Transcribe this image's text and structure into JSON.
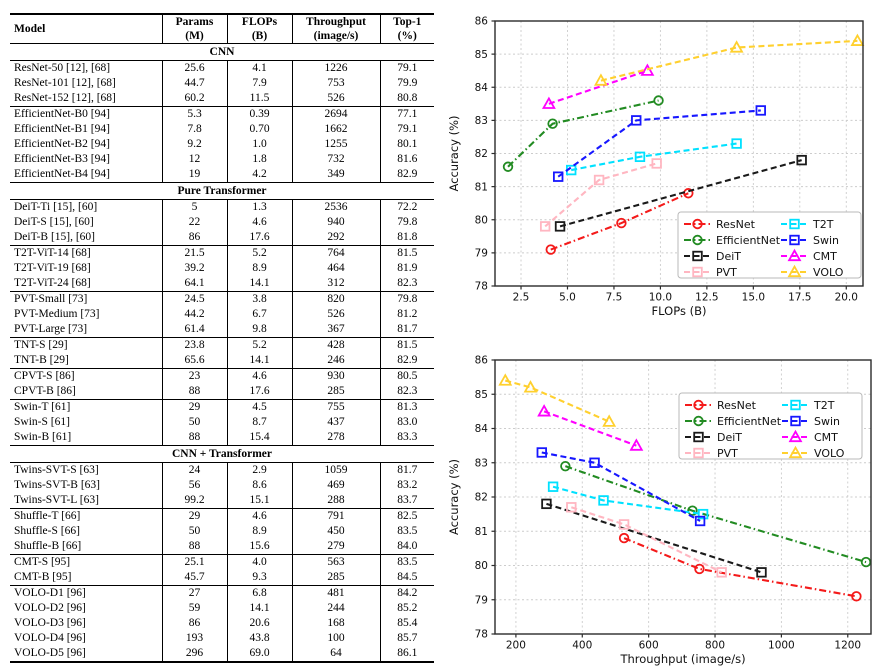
{
  "table": {
    "headers": [
      {
        "title": "Model",
        "unit": ""
      },
      {
        "title": "Params",
        "unit": "(M)"
      },
      {
        "title": "FLOPs",
        "unit": "(B)"
      },
      {
        "title": "Throughput",
        "unit": "(image/s)"
      },
      {
        "title": "Top-1",
        "unit": "(%)"
      }
    ],
    "sections": [
      {
        "name": "CNN",
        "groups": [
          [
            [
              "ResNet-50 [12], [68]",
              "25.6",
              "4.1",
              "1226",
              "79.1"
            ],
            [
              "ResNet-101 [12], [68]",
              "44.7",
              "7.9",
              "753",
              "79.9"
            ],
            [
              "ResNet-152 [12], [68]",
              "60.2",
              "11.5",
              "526",
              "80.8"
            ]
          ],
          [
            [
              "EfficientNet-B0 [94]",
              "5.3",
              "0.39",
              "2694",
              "77.1"
            ],
            [
              "EfficientNet-B1 [94]",
              "7.8",
              "0.70",
              "1662",
              "79.1"
            ],
            [
              "EfficientNet-B2 [94]",
              "9.2",
              "1.0",
              "1255",
              "80.1"
            ],
            [
              "EfficientNet-B3 [94]",
              "12",
              "1.8",
              "732",
              "81.6"
            ],
            [
              "EfficientNet-B4 [94]",
              "19",
              "4.2",
              "349",
              "82.9"
            ]
          ]
        ]
      },
      {
        "name": "Pure Transformer",
        "groups": [
          [
            [
              "DeiT-Ti [15], [60]",
              "5",
              "1.3",
              "2536",
              "72.2"
            ],
            [
              "DeiT-S [15], [60]",
              "22",
              "4.6",
              "940",
              "79.8"
            ],
            [
              "DeiT-B [15], [60]",
              "86",
              "17.6",
              "292",
              "81.8"
            ]
          ],
          [
            [
              "T2T-ViT-14 [68]",
              "21.5",
              "5.2",
              "764",
              "81.5"
            ],
            [
              "T2T-ViT-19 [68]",
              "39.2",
              "8.9",
              "464",
              "81.9"
            ],
            [
              "T2T-ViT-24 [68]",
              "64.1",
              "14.1",
              "312",
              "82.3"
            ]
          ],
          [
            [
              "PVT-Small [73]",
              "24.5",
              "3.8",
              "820",
              "79.8"
            ],
            [
              "PVT-Medium [73]",
              "44.2",
              "6.7",
              "526",
              "81.2"
            ],
            [
              "PVT-Large [73]",
              "61.4",
              "9.8",
              "367",
              "81.7"
            ]
          ],
          [
            [
              "TNT-S [29]",
              "23.8",
              "5.2",
              "428",
              "81.5"
            ],
            [
              "TNT-B [29]",
              "65.6",
              "14.1",
              "246",
              "82.9"
            ]
          ],
          [
            [
              "CPVT-S [86]",
              "23",
              "4.6",
              "930",
              "80.5"
            ],
            [
              "CPVT-B [86]",
              "88",
              "17.6",
              "285",
              "82.3"
            ]
          ],
          [
            [
              "Swin-T [61]",
              "29",
              "4.5",
              "755",
              "81.3"
            ],
            [
              "Swin-S [61]",
              "50",
              "8.7",
              "437",
              "83.0"
            ],
            [
              "Swin-B [61]",
              "88",
              "15.4",
              "278",
              "83.3"
            ]
          ]
        ]
      },
      {
        "name": "CNN + Transformer",
        "groups": [
          [
            [
              "Twins-SVT-S [63]",
              "24",
              "2.9",
              "1059",
              "81.7"
            ],
            [
              "Twins-SVT-B [63]",
              "56",
              "8.6",
              "469",
              "83.2"
            ],
            [
              "Twins-SVT-L [63]",
              "99.2",
              "15.1",
              "288",
              "83.7"
            ]
          ],
          [
            [
              "Shuffle-T [66]",
              "29",
              "4.6",
              "791",
              "82.5"
            ],
            [
              "Shuffle-S [66]",
              "50",
              "8.9",
              "450",
              "83.5"
            ],
            [
              "Shuffle-B [66]",
              "88",
              "15.6",
              "279",
              "84.0"
            ]
          ],
          [
            [
              "CMT-S [95]",
              "25.1",
              "4.0",
              "563",
              "83.5"
            ],
            [
              "CMT-B [95]",
              "45.7",
              "9.3",
              "285",
              "84.5"
            ]
          ],
          [
            [
              "VOLO-D1 [96]",
              "27",
              "6.8",
              "481",
              "84.2"
            ],
            [
              "VOLO-D2 [96]",
              "59",
              "14.1",
              "244",
              "85.2"
            ],
            [
              "VOLO-D3 [96]",
              "86",
              "20.6",
              "168",
              "85.4"
            ],
            [
              "VOLO-D4 [96]",
              "193",
              "43.8",
              "100",
              "85.7"
            ],
            [
              "VOLO-D5 [96]",
              "296",
              "69.0",
              "64",
              "86.1"
            ]
          ]
        ]
      }
    ]
  },
  "chart_data": [
    {
      "type": "line",
      "title": "",
      "xlabel": "FLOPs (B)",
      "ylabel": "Accuracy (%)",
      "xlim": [
        1.1,
        20.9
      ],
      "ylim": [
        78,
        86
      ],
      "xticks": [
        "2.5",
        "5.0",
        "7.5",
        "10.0",
        "12.5",
        "15.0",
        "17.5",
        "20.0"
      ],
      "xtick_vals": [
        2.5,
        5.0,
        7.5,
        10.0,
        12.5,
        15.0,
        17.5,
        20.0
      ],
      "yticks": [
        "78",
        "79",
        "80",
        "81",
        "82",
        "83",
        "84",
        "85",
        "86"
      ],
      "ytick_vals": [
        78,
        79,
        80,
        81,
        82,
        83,
        84,
        85,
        86
      ],
      "grid": true,
      "legend_position": "lower right",
      "series": [
        {
          "name": "ResNet",
          "color": "#f41a1a",
          "marker": "circle",
          "linestyle": "dashdot",
          "points": [
            [
              4.1,
              79.1
            ],
            [
              7.9,
              79.9
            ],
            [
              11.5,
              80.8
            ]
          ]
        },
        {
          "name": "EfficientNet",
          "color": "#228b22",
          "marker": "circle",
          "linestyle": "dashdot",
          "points": [
            [
              1.8,
              81.6
            ],
            [
              4.2,
              82.9
            ],
            [
              9.9,
              83.6
            ]
          ]
        },
        {
          "name": "DeiT",
          "color": "#1a1a1a",
          "marker": "square",
          "linestyle": "dashed",
          "points": [
            [
              4.6,
              79.8
            ],
            [
              17.6,
              81.8
            ]
          ]
        },
        {
          "name": "PVT",
          "color": "#ffb6c1",
          "marker": "square",
          "linestyle": "dashed",
          "points": [
            [
              3.8,
              79.8
            ],
            [
              6.7,
              81.2
            ],
            [
              9.8,
              81.7
            ]
          ]
        },
        {
          "name": "T2T",
          "color": "#00e1ff",
          "marker": "square",
          "linestyle": "dashed",
          "points": [
            [
              5.2,
              81.5
            ],
            [
              8.9,
              81.9
            ],
            [
              14.1,
              82.3
            ]
          ]
        },
        {
          "name": "Swin",
          "color": "#1717ff",
          "marker": "square",
          "linestyle": "dashed",
          "points": [
            [
              4.5,
              81.3
            ],
            [
              8.7,
              83.0
            ],
            [
              15.4,
              83.3
            ]
          ]
        },
        {
          "name": "CMT",
          "color": "#ff00ff",
          "marker": "triangle",
          "linestyle": "dashed",
          "points": [
            [
              4.0,
              83.5
            ],
            [
              9.3,
              84.5
            ]
          ]
        },
        {
          "name": "VOLO",
          "color": "#ffd02e",
          "marker": "triangle",
          "linestyle": "dashed",
          "points": [
            [
              6.8,
              84.2
            ],
            [
              14.1,
              85.2
            ],
            [
              20.6,
              85.4
            ]
          ]
        }
      ]
    },
    {
      "type": "line",
      "title": "",
      "xlabel": "Throughput (image/s)",
      "ylabel": "Accuracy (%)",
      "xlim": [
        137,
        1270
      ],
      "ylim": [
        78,
        86
      ],
      "xticks": [
        "200",
        "400",
        "600",
        "800",
        "1000",
        "1200"
      ],
      "xtick_vals": [
        200,
        400,
        600,
        800,
        1000,
        1200
      ],
      "yticks": [
        "78",
        "79",
        "80",
        "81",
        "82",
        "83",
        "84",
        "85",
        "86"
      ],
      "ytick_vals": [
        78,
        79,
        80,
        81,
        82,
        83,
        84,
        85,
        86
      ],
      "grid": true,
      "legend_position": "upper right",
      "series": [
        {
          "name": "ResNet",
          "color": "#f41a1a",
          "marker": "circle",
          "linestyle": "dashdot",
          "points": [
            [
              526,
              80.8
            ],
            [
              753,
              79.9
            ],
            [
              1226,
              79.1
            ]
          ]
        },
        {
          "name": "EfficientNet",
          "color": "#228b22",
          "marker": "circle",
          "linestyle": "dashdot",
          "points": [
            [
              349,
              82.9
            ],
            [
              732,
              81.6
            ],
            [
              1255,
              80.1
            ]
          ]
        },
        {
          "name": "DeiT",
          "color": "#1a1a1a",
          "marker": "square",
          "linestyle": "dashed",
          "points": [
            [
              292,
              81.8
            ],
            [
              940,
              79.8
            ]
          ]
        },
        {
          "name": "PVT",
          "color": "#ffb6c1",
          "marker": "square",
          "linestyle": "dashed",
          "points": [
            [
              367,
              81.7
            ],
            [
              526,
              81.2
            ],
            [
              820,
              79.8
            ]
          ]
        },
        {
          "name": "T2T",
          "color": "#00e1ff",
          "marker": "square",
          "linestyle": "dashed",
          "points": [
            [
              312,
              82.3
            ],
            [
              464,
              81.9
            ],
            [
              764,
              81.5
            ]
          ]
        },
        {
          "name": "Swin",
          "color": "#1717ff",
          "marker": "square",
          "linestyle": "dashed",
          "points": [
            [
              278,
              83.3
            ],
            [
              437,
              83.0
            ],
            [
              755,
              81.3
            ]
          ]
        },
        {
          "name": "CMT",
          "color": "#ff00ff",
          "marker": "triangle",
          "linestyle": "dashed",
          "points": [
            [
              285,
              84.5
            ],
            [
              563,
              83.5
            ]
          ]
        },
        {
          "name": "VOLO",
          "color": "#ffd02e",
          "marker": "triangle",
          "linestyle": "dashed",
          "points": [
            [
              168,
              85.4
            ],
            [
              244,
              85.2
            ],
            [
              481,
              84.2
            ]
          ]
        }
      ]
    }
  ],
  "style_colors": {
    "grid": "#cccccc",
    "spine": "#2b2b2b",
    "text": "#111111"
  }
}
